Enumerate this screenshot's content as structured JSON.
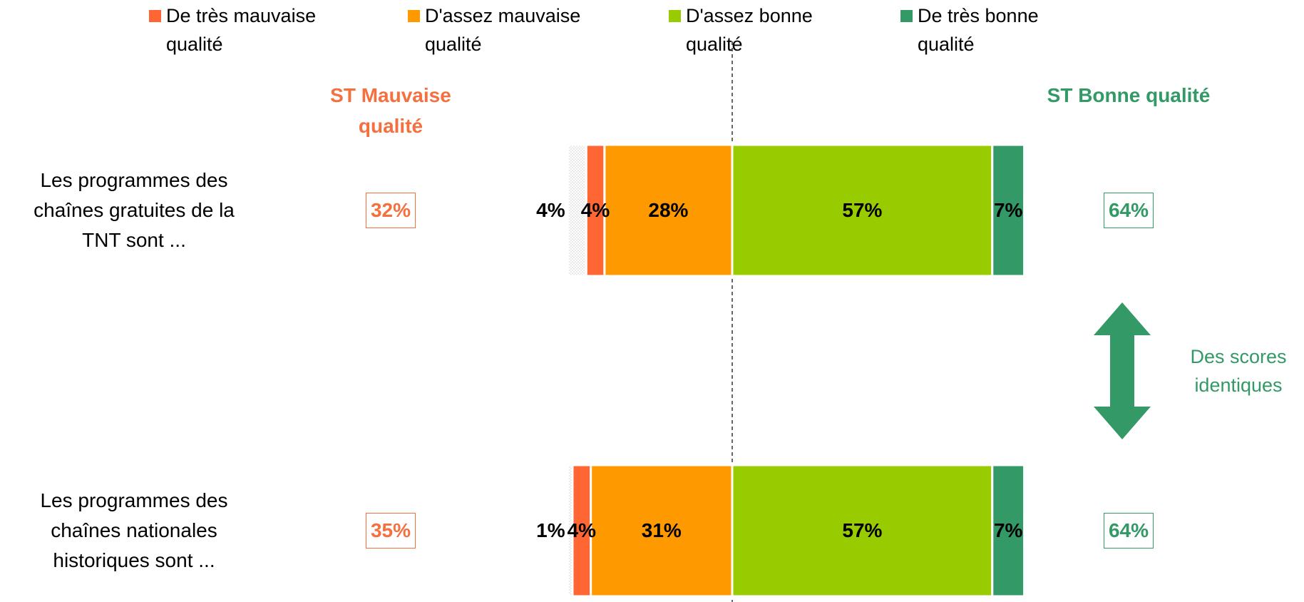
{
  "chart_data": {
    "type": "diverging_bar",
    "categories": [
      "Les programmes des chaînes gratuites de la TNT  sont ...",
      "Les programmes des chaînes nationales historiques sont ..."
    ],
    "neutral": {
      "color": "#d9d9d9",
      "values": [
        4,
        1
      ],
      "value_labels": [
        "4%",
        "1%"
      ]
    },
    "series": [
      {
        "name": "De très mauvaise qualité",
        "color": "#ff6633",
        "side": "negative",
        "values": [
          4,
          4
        ],
        "value_labels": [
          "4%",
          "4%"
        ]
      },
      {
        "name": "D'assez mauvaise qualité",
        "color": "#ff9900",
        "side": "negative",
        "values": [
          28,
          31
        ],
        "value_labels": [
          "28%",
          "31%"
        ]
      },
      {
        "name": "D'assez bonne qualité",
        "color": "#99cc00",
        "side": "positive",
        "values": [
          57,
          57
        ],
        "value_labels": [
          "57%",
          "57%"
        ]
      },
      {
        "name": "De très bonne qualité",
        "color": "#339966",
        "side": "positive",
        "values": [
          7,
          7
        ],
        "value_labels": [
          "7%",
          "7%"
        ]
      }
    ],
    "summaries": [
      {
        "title": "ST Mauvaise qualité",
        "color": "#f4703f",
        "side": "negative",
        "values": [
          32,
          35
        ],
        "value_labels": [
          "32%",
          "35%"
        ]
      },
      {
        "title": "ST Bonne qualité",
        "color": "#339966",
        "side": "positive",
        "values": [
          64,
          64
        ],
        "value_labels": [
          "64%",
          "64%"
        ]
      }
    ],
    "annotation": "Des scores identiques"
  }
}
